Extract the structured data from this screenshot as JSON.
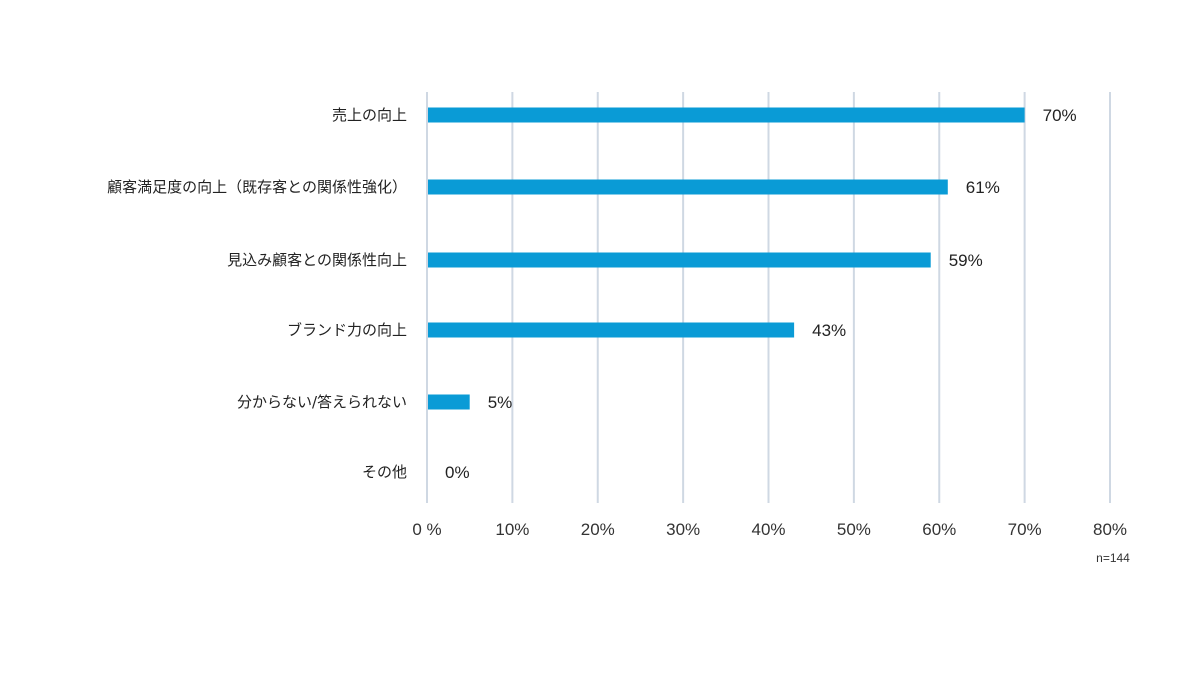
{
  "chart_data": {
    "type": "bar",
    "orientation": "horizontal",
    "categories": [
      "売上の向上",
      "顧客満足度の向上（既存客との関係性強化）",
      "見込み顧客との関係性向上",
      "ブランド力の向上",
      "分からない/答えられない",
      "その他"
    ],
    "values": [
      70,
      61,
      59,
      43,
      5,
      0
    ],
    "value_labels": [
      "70%",
      "61%",
      "59%",
      "43%",
      "5%",
      "0%"
    ],
    "xlim": [
      0,
      80
    ],
    "ticks": [
      0,
      10,
      20,
      30,
      40,
      50,
      60,
      70,
      80
    ],
    "tick_labels": [
      "0 %",
      "10%",
      "20%",
      "30%",
      "40%",
      "50%",
      "60%",
      "70%",
      "80%"
    ],
    "grid": true,
    "bar_color": "#0a9bd6",
    "note": "n=144"
  }
}
